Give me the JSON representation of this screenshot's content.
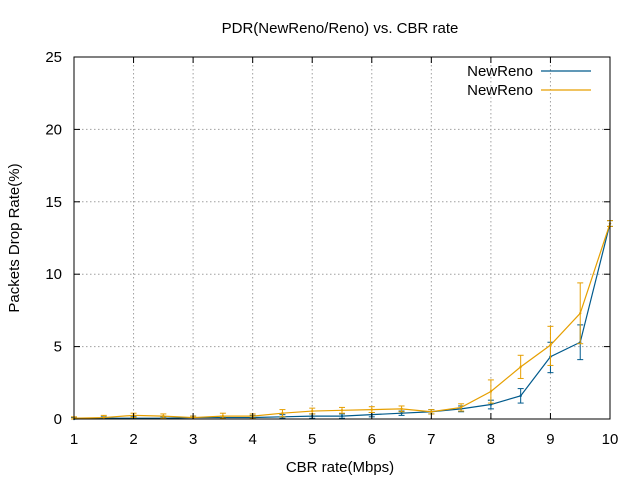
{
  "chart_data": {
    "type": "line",
    "title": "PDR(NewReno/Reno) vs. CBR rate",
    "xlabel": "CBR rate(Mbps)",
    "ylabel": "Packets Drop Rate(%)",
    "xlim": [
      1,
      10
    ],
    "ylim": [
      0,
      25
    ],
    "xticks": [
      1,
      2,
      3,
      4,
      5,
      6,
      7,
      8,
      9,
      10
    ],
    "yticks": [
      0,
      5,
      10,
      15,
      20,
      25
    ],
    "grid": true,
    "legend_position": "top-right",
    "series": [
      {
        "name": "NewReno",
        "color": "#005a8c",
        "points": [
          {
            "x": 1,
            "y": 0.0,
            "lo": 0.0,
            "hi": 0.1
          },
          {
            "x": 1.5,
            "y": 0.05,
            "lo": 0.0,
            "hi": 0.15
          },
          {
            "x": 2,
            "y": 0.05,
            "lo": 0.0,
            "hi": 0.15
          },
          {
            "x": 2.5,
            "y": 0.05,
            "lo": 0.0,
            "hi": 0.15
          },
          {
            "x": 3,
            "y": 0.1,
            "lo": 0.0,
            "hi": 0.2
          },
          {
            "x": 3.5,
            "y": 0.1,
            "lo": 0.0,
            "hi": 0.2
          },
          {
            "x": 4,
            "y": 0.1,
            "lo": 0.0,
            "hi": 0.25
          },
          {
            "x": 4.5,
            "y": 0.15,
            "lo": 0.05,
            "hi": 0.3
          },
          {
            "x": 5,
            "y": 0.2,
            "lo": 0.05,
            "hi": 0.35
          },
          {
            "x": 5.5,
            "y": 0.2,
            "lo": 0.05,
            "hi": 0.35
          },
          {
            "x": 6,
            "y": 0.3,
            "lo": 0.15,
            "hi": 0.45
          },
          {
            "x": 6.5,
            "y": 0.4,
            "lo": 0.25,
            "hi": 0.55
          },
          {
            "x": 7,
            "y": 0.5,
            "lo": 0.35,
            "hi": 0.65
          },
          {
            "x": 7.5,
            "y": 0.7,
            "lo": 0.5,
            "hi": 0.9
          },
          {
            "x": 8,
            "y": 1.0,
            "lo": 0.7,
            "hi": 1.3
          },
          {
            "x": 8.5,
            "y": 1.6,
            "lo": 1.1,
            "hi": 2.1
          },
          {
            "x": 9,
            "y": 4.3,
            "lo": 3.2,
            "hi": 5.3
          },
          {
            "x": 9.5,
            "y": 5.3,
            "lo": 4.1,
            "hi": 6.5
          },
          {
            "x": 10,
            "y": 13.5,
            "lo": 13.3,
            "hi": 13.7
          }
        ]
      },
      {
        "name": "NewReno",
        "color": "#e69f00",
        "points": [
          {
            "x": 1,
            "y": 0.05,
            "lo": 0.0,
            "hi": 0.15
          },
          {
            "x": 1.5,
            "y": 0.1,
            "lo": 0.0,
            "hi": 0.25
          },
          {
            "x": 2,
            "y": 0.25,
            "lo": 0.1,
            "hi": 0.4
          },
          {
            "x": 2.5,
            "y": 0.2,
            "lo": 0.05,
            "hi": 0.35
          },
          {
            "x": 3,
            "y": 0.1,
            "lo": 0.0,
            "hi": 0.2
          },
          {
            "x": 3.5,
            "y": 0.2,
            "lo": 0.05,
            "hi": 0.4
          },
          {
            "x": 4,
            "y": 0.2,
            "lo": 0.05,
            "hi": 0.35
          },
          {
            "x": 4.5,
            "y": 0.4,
            "lo": 0.15,
            "hi": 0.65
          },
          {
            "x": 5,
            "y": 0.55,
            "lo": 0.35,
            "hi": 0.75
          },
          {
            "x": 5.5,
            "y": 0.6,
            "lo": 0.4,
            "hi": 0.8
          },
          {
            "x": 6,
            "y": 0.65,
            "lo": 0.45,
            "hi": 0.85
          },
          {
            "x": 6.5,
            "y": 0.7,
            "lo": 0.5,
            "hi": 0.9
          },
          {
            "x": 7,
            "y": 0.5,
            "lo": 0.35,
            "hi": 0.65
          },
          {
            "x": 7.5,
            "y": 0.8,
            "lo": 0.55,
            "hi": 1.05
          },
          {
            "x": 8,
            "y": 1.9,
            "lo": 1.1,
            "hi": 2.7
          },
          {
            "x": 8.5,
            "y": 3.6,
            "lo": 2.8,
            "hi": 4.4
          },
          {
            "x": 9,
            "y": 5.1,
            "lo": 3.7,
            "hi": 6.4
          },
          {
            "x": 9.5,
            "y": 7.3,
            "lo": 5.2,
            "hi": 9.4
          },
          {
            "x": 10,
            "y": 13.5,
            "lo": 13.3,
            "hi": 13.7
          }
        ]
      }
    ]
  }
}
